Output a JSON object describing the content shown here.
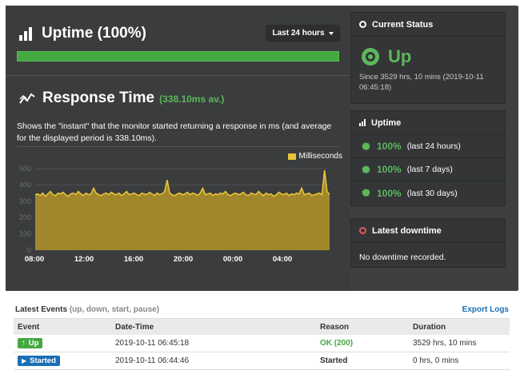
{
  "uptime_panel": {
    "title": "Uptime (100%)",
    "range_label": "Last 24 hours",
    "uptime_fraction": 1.0
  },
  "response_time": {
    "title": "Response Time",
    "average": "(338.10ms av.)",
    "description": "Shows the \"instant\" that the monitor started returning a response in ms (and average for the displayed period is 338.10ms)."
  },
  "chart_data": {
    "type": "area",
    "legend": [
      "Milliseconds"
    ],
    "legend_position": "top-right",
    "x_tick_labels": [
      "08:00",
      "12:00",
      "16:00",
      "20:00",
      "00:00",
      "04:00"
    ],
    "y_tick_labels": [
      "0",
      "100",
      "200",
      "300",
      "400",
      "500"
    ],
    "ylim": [
      0,
      500
    ],
    "grid": true,
    "color": "#e8c43a",
    "series": [
      {
        "name": "Milliseconds",
        "values": [
          340,
          345,
          335,
          350,
          330,
          345,
          360,
          340,
          335,
          350,
          345,
          355,
          340,
          330,
          345,
          350,
          340,
          360,
          345,
          335,
          350,
          340,
          345,
          380,
          350,
          340,
          335,
          345,
          350,
          340,
          355,
          345,
          340,
          350,
          335,
          345,
          360,
          340,
          345,
          350,
          340,
          335,
          350,
          345,
          340,
          355,
          345,
          335,
          350,
          340,
          345,
          360,
          430,
          350,
          340,
          335,
          345,
          350,
          340,
          345,
          355,
          340,
          350,
          345,
          335,
          350,
          380,
          340,
          345,
          350,
          335,
          345,
          340,
          350,
          345,
          360,
          340,
          335,
          345,
          350,
          340,
          345,
          355,
          340,
          335,
          350,
          345,
          340,
          360,
          345,
          335,
          350,
          340,
          345,
          330,
          340,
          355,
          345,
          340,
          350,
          335,
          345,
          340,
          350,
          345,
          380,
          340,
          345,
          350,
          335,
          340,
          345,
          350,
          340,
          490,
          360,
          340
        ]
      }
    ]
  },
  "current_status": {
    "header": "Current Status",
    "state": "Up",
    "since": "Since 3529 hrs, 10 mins (2019-10-11 06:45:18)"
  },
  "uptime_card": {
    "header": "Uptime",
    "rows": [
      {
        "pct": "100%",
        "period": "(last 24 hours)"
      },
      {
        "pct": "100%",
        "period": "(last 7 days)"
      },
      {
        "pct": "100%",
        "period": "(last 30 days)"
      }
    ]
  },
  "latest_downtime": {
    "header": "Latest downtime",
    "text": "No downtime recorded."
  },
  "events": {
    "title": "Latest Events",
    "subtitle": "(up, down, start, pause)",
    "export_label": "Export Logs",
    "columns": [
      "Event",
      "Date-Time",
      "Reason",
      "Duration"
    ],
    "rows": [
      {
        "event": "Up",
        "datetime": "2019-10-11 06:45:18",
        "reason": "OK (200)",
        "duration": "3529 hrs, 10 mins"
      },
      {
        "event": "Started",
        "datetime": "2019-10-11 06:44:46",
        "reason": "Started",
        "duration": "0 hrs, 0 mins"
      }
    ]
  },
  "colors": {
    "accent_green": "#44a941",
    "link_blue": "#1a6fb5",
    "alert_red": "#e05a5a",
    "chart_fill": "#a88a2a"
  }
}
